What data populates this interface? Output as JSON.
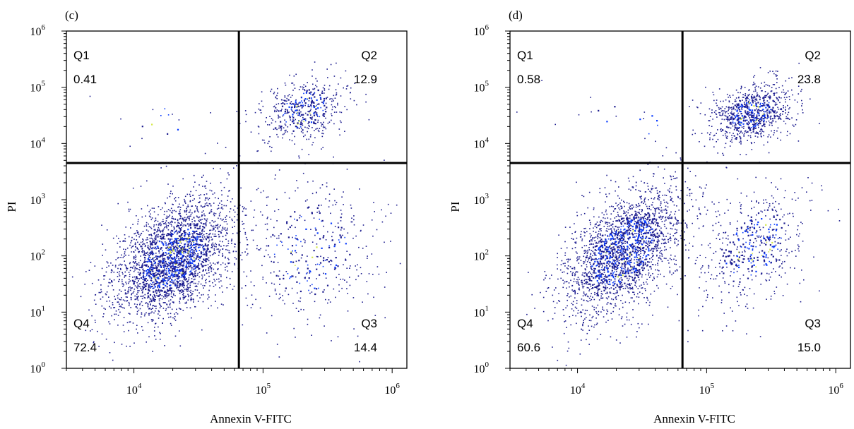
{
  "chart_data": [
    {
      "type": "scatter",
      "panel_label": "(c)",
      "xlabel": "Annexin V-FITC",
      "ylabel": "PI",
      "x_scale": "log",
      "y_scale": "log",
      "xlim": [
        3000,
        1300000
      ],
      "ylim": [
        1,
        1000000
      ],
      "x_ticks": [
        10000,
        100000,
        1000000
      ],
      "y_ticks": [
        1,
        10,
        100,
        1000,
        10000,
        100000,
        1000000
      ],
      "gate": {
        "x": 65000,
        "y": 4500
      },
      "quadrants": [
        {
          "name": "Q1",
          "value": "0.41"
        },
        {
          "name": "Q2",
          "value": "12.9"
        },
        {
          "name": "Q3",
          "value": "14.4"
        },
        {
          "name": "Q4",
          "value": "72.4"
        }
      ],
      "clusters": [
        {
          "cx": 20000,
          "cy": 90,
          "sx": 0.24,
          "sy": 0.55,
          "rho": 0.45,
          "n": 2600
        },
        {
          "cx": 200000,
          "cy": 40000,
          "sx": 0.17,
          "sy": 0.32,
          "rho": 0.3,
          "n": 480
        },
        {
          "cx": 230000,
          "cy": 120,
          "sx": 0.28,
          "sy": 0.7,
          "rho": 0.1,
          "n": 420
        },
        {
          "cx": 20000,
          "cy": 25000,
          "sx": 0.35,
          "sy": 0.25,
          "rho": 0.0,
          "n": 18
        }
      ],
      "seed": 11
    },
    {
      "type": "scatter",
      "panel_label": "(d)",
      "xlabel": "Annexin V-FITC",
      "ylabel": "PI",
      "x_scale": "log",
      "y_scale": "log",
      "xlim": [
        3000,
        1300000
      ],
      "ylim": [
        1,
        1000000
      ],
      "x_ticks": [
        10000,
        100000,
        1000000
      ],
      "y_ticks": [
        1,
        10,
        100,
        1000,
        10000,
        100000,
        1000000
      ],
      "gate": {
        "x": 65000,
        "y": 4500
      },
      "quadrants": [
        {
          "name": "Q1",
          "value": "0.58"
        },
        {
          "name": "Q2",
          "value": "23.8"
        },
        {
          "name": "Q3",
          "value": "15.0"
        },
        {
          "name": "Q4",
          "value": "60.6"
        }
      ],
      "clusters": [
        {
          "cx": 22000,
          "cy": 120,
          "sx": 0.24,
          "sy": 0.6,
          "rho": 0.5,
          "n": 2200
        },
        {
          "cx": 220000,
          "cy": 35000,
          "sx": 0.16,
          "sy": 0.28,
          "rho": 0.3,
          "n": 820
        },
        {
          "cx": 230000,
          "cy": 150,
          "sx": 0.22,
          "sy": 0.55,
          "rho": 0.35,
          "n": 520
        },
        {
          "cx": 25000,
          "cy": 25000,
          "sx": 0.35,
          "sy": 0.25,
          "rho": 0.0,
          "n": 22
        }
      ],
      "seed": 23
    }
  ],
  "colors": {
    "dot": "#1d1d8f",
    "dense": "#0a3cff",
    "hot": "#d6e84a",
    "axis": "#000000"
  }
}
